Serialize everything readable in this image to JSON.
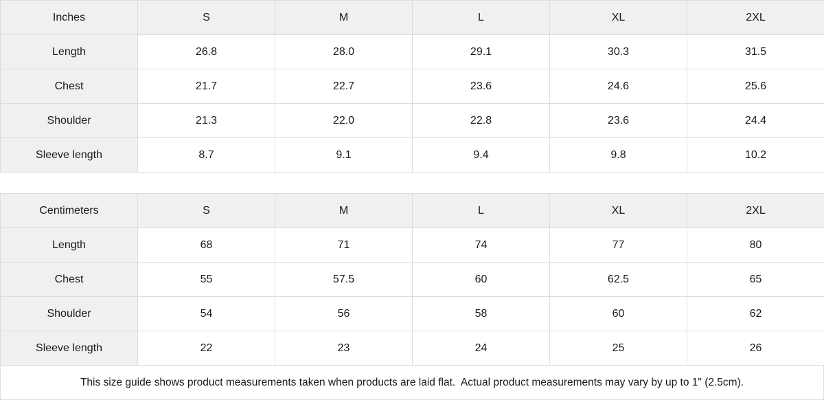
{
  "colors": {
    "header_bg": "#f0f0f0",
    "border": "#dddddd",
    "text": "#1a1a1a",
    "background": "#ffffff"
  },
  "tables": [
    {
      "unit_label": "Inches",
      "sizes": [
        "S",
        "M",
        "L",
        "XL",
        "2XL"
      ],
      "rows": [
        {
          "label": "Length",
          "values": [
            "26.8",
            "28.0",
            "29.1",
            "30.3",
            "31.5"
          ]
        },
        {
          "label": "Chest",
          "values": [
            "21.7",
            "22.7",
            "23.6",
            "24.6",
            "25.6"
          ]
        },
        {
          "label": "Shoulder",
          "values": [
            "21.3",
            "22.0",
            "22.8",
            "23.6",
            "24.4"
          ]
        },
        {
          "label": "Sleeve length",
          "values": [
            "8.7",
            "9.1",
            "9.4",
            "9.8",
            "10.2"
          ]
        }
      ]
    },
    {
      "unit_label": "Centimeters",
      "sizes": [
        "S",
        "M",
        "L",
        "XL",
        "2XL"
      ],
      "rows": [
        {
          "label": "Length",
          "values": [
            "68",
            "71",
            "74",
            "77",
            "80"
          ]
        },
        {
          "label": "Chest",
          "values": [
            "55",
            "57.5",
            "60",
            "62.5",
            "65"
          ]
        },
        {
          "label": "Shoulder",
          "values": [
            "54",
            "56",
            "58",
            "60",
            "62"
          ]
        },
        {
          "label": "Sleeve length",
          "values": [
            "22",
            "23",
            "24",
            "25",
            "26"
          ]
        }
      ]
    }
  ],
  "footer": {
    "note": "This size guide shows product measurements taken when products are laid flat.  Actual product measurements may vary by up to 1\" (2.5cm)."
  }
}
